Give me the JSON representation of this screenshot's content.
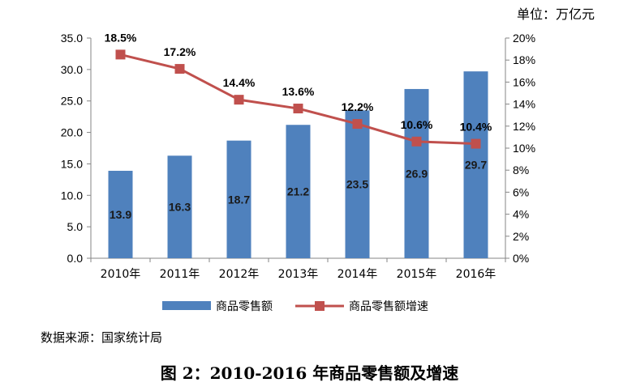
{
  "unit": "单位：万亿元",
  "source": "数据来源：国家统计局",
  "caption": "图 2：2010-2016 年商品零售额及增速",
  "colors": {
    "bar": "#4f81bd",
    "line": "#c0504d",
    "axis": "#868686",
    "grid": "#bfbfbf"
  },
  "chart_data": {
    "type": "bar+line",
    "title": "图 2：2010-2016 年商品零售额及增速",
    "categories": [
      "2010年",
      "2011年",
      "2012年",
      "2013年",
      "2014年",
      "2015年",
      "2016年"
    ],
    "series": [
      {
        "name": "商品零售额",
        "type": "bar",
        "axis": "left",
        "values": [
          13.9,
          16.3,
          18.7,
          21.2,
          23.5,
          26.9,
          29.7
        ],
        "labels": [
          "13.9",
          "16.3",
          "18.7",
          "21.2",
          "23.5",
          "26.9",
          "29.7"
        ]
      },
      {
        "name": "商品零售额增速",
        "type": "line",
        "axis": "right",
        "values": [
          18.5,
          17.2,
          14.4,
          13.6,
          12.2,
          10.6,
          10.4
        ],
        "labels": [
          "18.5%",
          "17.2%",
          "14.4%",
          "13.6%",
          "12.2%",
          "10.6%",
          "10.4%"
        ]
      }
    ],
    "y_left": {
      "ylim": [
        0,
        35
      ],
      "ticks": [
        0,
        5,
        10,
        15,
        20,
        25,
        30,
        35
      ],
      "tick_labels": [
        "0.0",
        "5.0",
        "10.0",
        "15.0",
        "20.0",
        "25.0",
        "30.0",
        "35.0"
      ]
    },
    "y_right": {
      "ylim": [
        0,
        20
      ],
      "ticks": [
        0,
        2,
        4,
        6,
        8,
        10,
        12,
        14,
        16,
        18,
        20
      ],
      "tick_labels": [
        "0%",
        "2%",
        "4%",
        "6%",
        "8%",
        "10%",
        "12%",
        "14%",
        "16%",
        "18%",
        "20%"
      ]
    },
    "legend": {
      "position": "bottom",
      "entries": [
        "商品零售额",
        "商品零售额增速"
      ]
    },
    "grid": false
  }
}
